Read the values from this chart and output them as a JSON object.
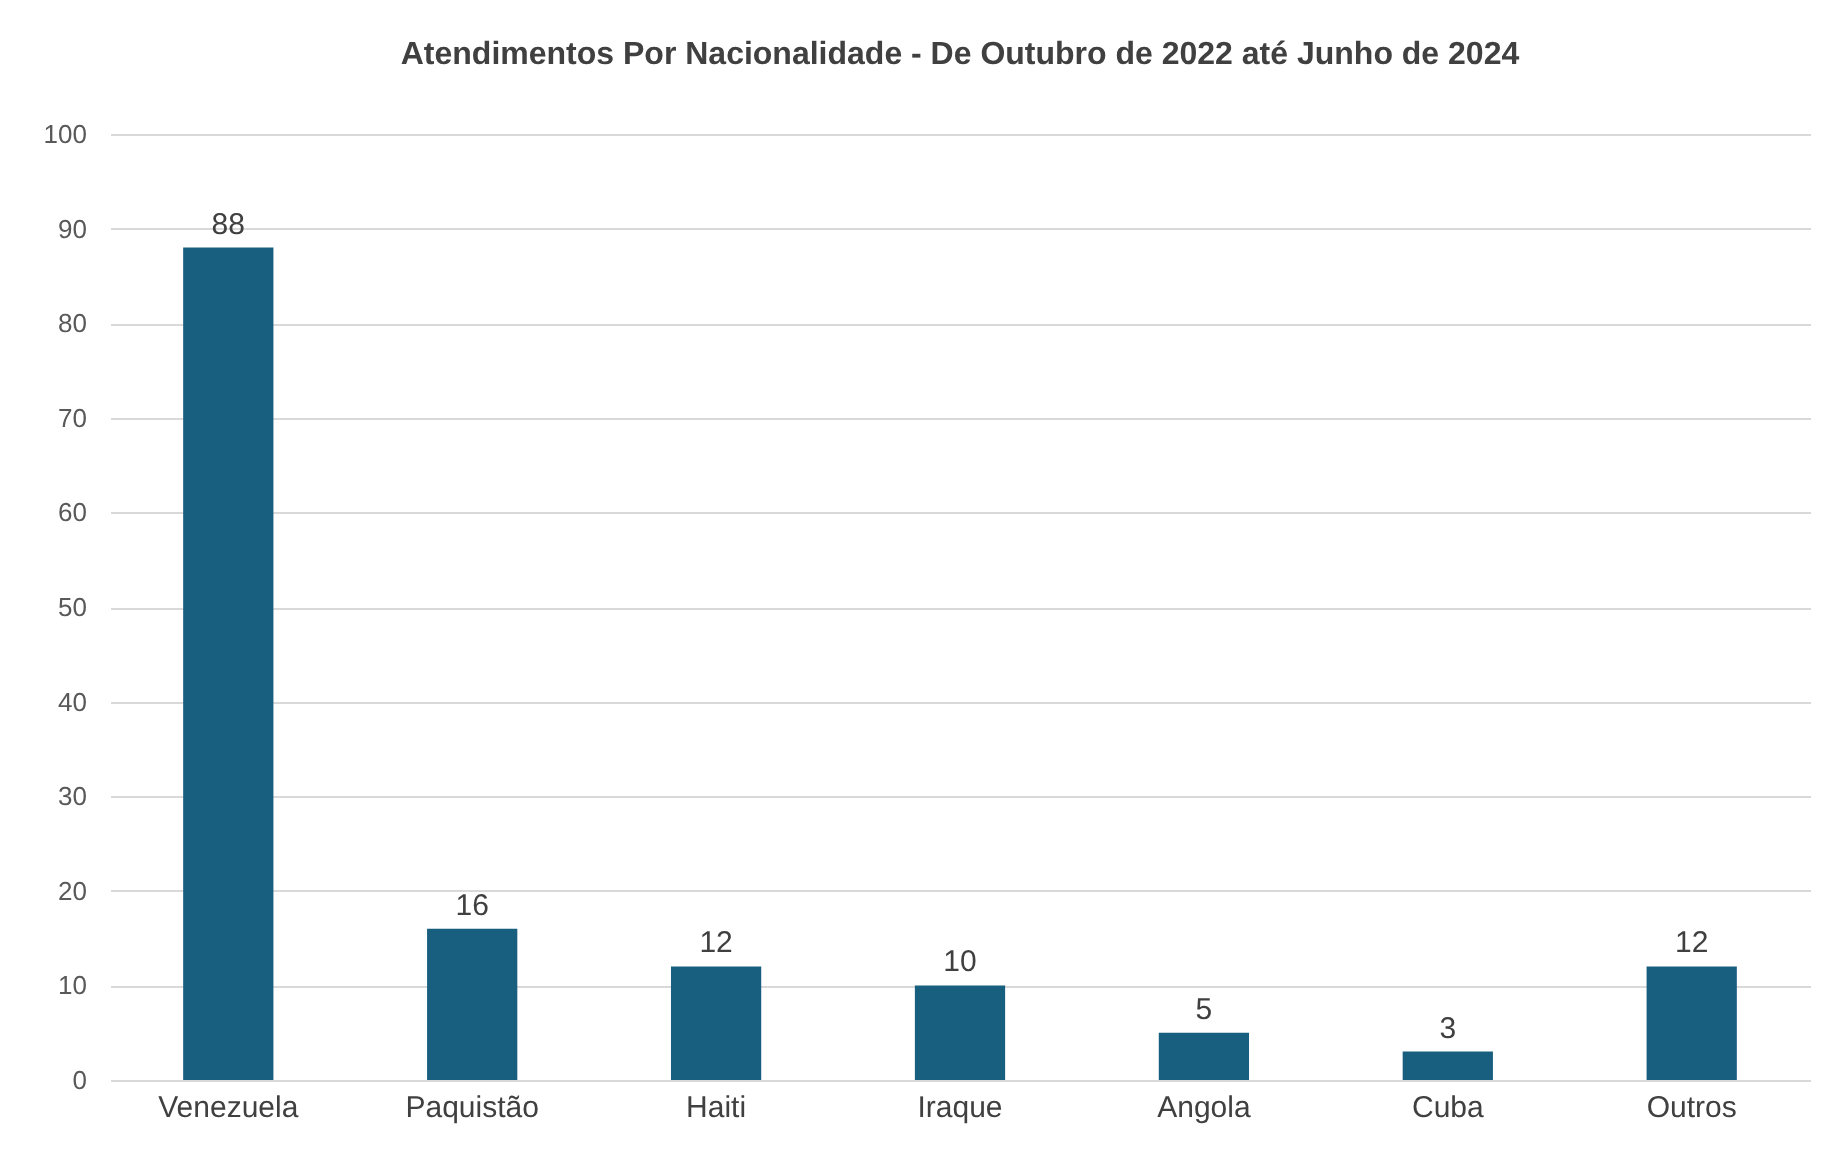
{
  "chart_data": {
    "type": "bar",
    "title": "Atendimentos Por Nacionalidade - De Outubro de 2022 até Junho de 2024",
    "categories": [
      "Venezuela",
      "Paquistão",
      "Haiti",
      "Iraque",
      "Angola",
      "Cuba",
      "Outros"
    ],
    "values": [
      88,
      16,
      12,
      10,
      5,
      3,
      12
    ],
    "color": "#175e7f",
    "ylim": [
      0,
      100
    ],
    "yticks": [
      0,
      10,
      20,
      30,
      40,
      50,
      60,
      70,
      80,
      90,
      100
    ],
    "grid": "y",
    "data_labels": true
  }
}
